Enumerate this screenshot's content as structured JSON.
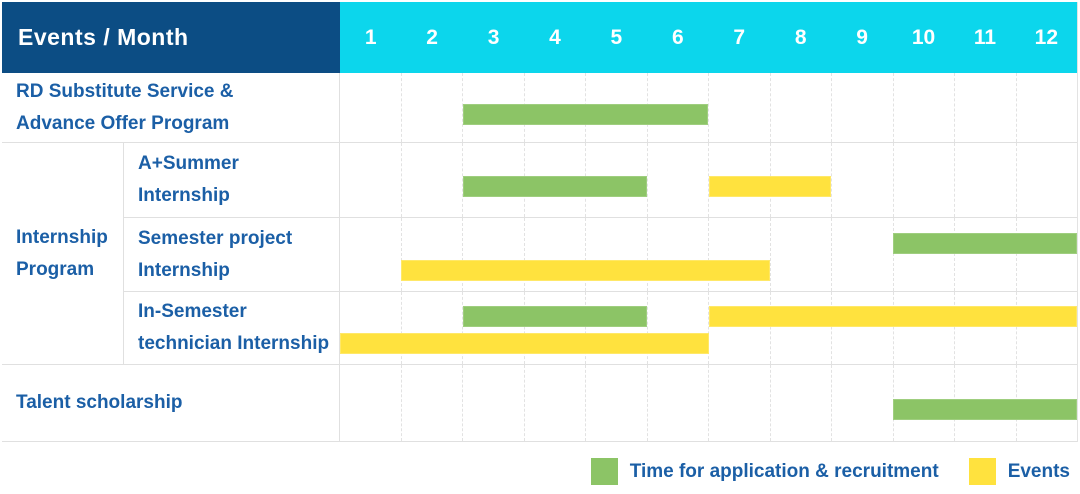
{
  "header": {
    "label": "Events / Month",
    "months": [
      "1",
      "2",
      "3",
      "4",
      "5",
      "6",
      "7",
      "8",
      "9",
      "10",
      "11",
      "12"
    ]
  },
  "colors": {
    "header_bg": "#0c4d84",
    "months_bg": "#0cd6ec",
    "application_green": "#8cc466",
    "event_yellow": "#ffe23e",
    "label_text_blue": "#1b5fa6"
  },
  "rows": [
    {
      "label_lines": [
        "RD Substitute Service &",
        "Advance Offer Program"
      ]
    },
    {
      "label_lines": [
        "A+Summer",
        "Internship"
      ]
    },
    {
      "label_lines": [
        "Semester project",
        "Internship"
      ]
    },
    {
      "label_lines": [
        "In-Semester",
        "technician Internship"
      ]
    },
    {
      "label_lines": [
        "Talent scholarship"
      ]
    }
  ],
  "group": {
    "label_lines": [
      "Internship",
      "Program"
    ]
  },
  "legend": {
    "application_label": "Time for application & recruitment",
    "event_label": "Events"
  },
  "chart_data": {
    "type": "gantt",
    "title": "Events / Month",
    "x_unit": "month",
    "x_range": [
      1,
      12
    ],
    "grid": true,
    "legend_position": "bottom-right",
    "legend": [
      {
        "kind": "application",
        "label": "Time for application & recruitment",
        "color": "#8cc466"
      },
      {
        "kind": "event",
        "label": "Events",
        "color": "#ffe23e"
      }
    ],
    "rows": [
      {
        "group": null,
        "label": "RD Substitute Service & Advance Offer Program",
        "bars": [
          {
            "kind": "application",
            "start_month": 3,
            "end_month": 6,
            "lane": "single"
          }
        ]
      },
      {
        "group": "Internship Program",
        "label": "A+Summer Internship",
        "bars": [
          {
            "kind": "application",
            "start_month": 3,
            "end_month": 5,
            "lane": "single"
          },
          {
            "kind": "event",
            "start_month": 7,
            "end_month": 8,
            "lane": "single"
          }
        ]
      },
      {
        "group": "Internship Program",
        "label": "Semester project Internship",
        "bars": [
          {
            "kind": "application",
            "start_month": 10,
            "end_month": 12,
            "lane": "top"
          },
          {
            "kind": "event",
            "start_month": 2,
            "end_month": 7,
            "lane": "bottom"
          }
        ]
      },
      {
        "group": "Internship Program",
        "label": "In-Semester technician Internship",
        "bars": [
          {
            "kind": "application",
            "start_month": 3,
            "end_month": 5,
            "lane": "top"
          },
          {
            "kind": "event",
            "start_month": 7,
            "end_month": 12,
            "lane": "top"
          },
          {
            "kind": "event",
            "start_month": 1,
            "end_month": 6,
            "lane": "bottom"
          }
        ]
      },
      {
        "group": null,
        "label": "Talent scholarship",
        "bars": [
          {
            "kind": "application",
            "start_month": 10,
            "end_month": 12,
            "lane": "single"
          }
        ]
      }
    ]
  }
}
